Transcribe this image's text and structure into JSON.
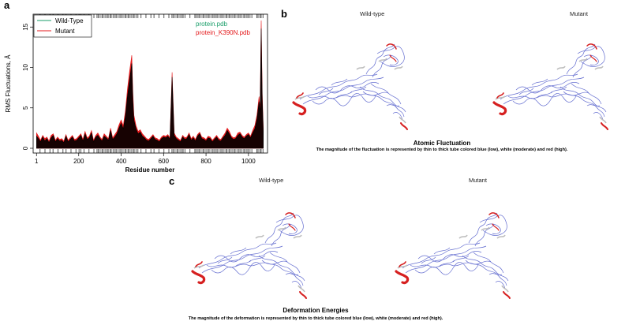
{
  "panels": {
    "a": {
      "letter": "a",
      "chart_data": {
        "type": "line",
        "xlabel": "Residue number",
        "ylabel": "RMS Fluctuations, Å",
        "xlim": [
          0,
          1075
        ],
        "ylim": [
          0,
          16
        ],
        "x_ticks": [
          1,
          200,
          400,
          600,
          800,
          1000
        ],
        "x_tick_labels": [
          "1",
          "200",
          "400",
          "600",
          "800",
          "1000"
        ],
        "y_ticks": [
          0,
          5,
          10,
          15
        ],
        "y_tick_labels": [
          "0",
          "5",
          "10",
          "15"
        ],
        "legend": {
          "placement": "top-left",
          "entries": [
            "Wild-Type",
            "Mutant"
          ]
        },
        "annotations": [
          {
            "text": "protein.pdb",
            "color": "#1a9e6a"
          },
          {
            "text": "protein_K390N.pdb",
            "color": "#e41a1c"
          }
        ],
        "series": [
          {
            "name": "Wild-Type",
            "color": "#000000",
            "x": [
              1,
              10,
              20,
              30,
              40,
              50,
              60,
              70,
              80,
              90,
              100,
              110,
              120,
              130,
              140,
              150,
              160,
              170,
              180,
              190,
              200,
              210,
              220,
              230,
              240,
              250,
              260,
              270,
              280,
              290,
              300,
              310,
              320,
              330,
              340,
              350,
              360,
              370,
              380,
              390,
              400,
              410,
              420,
              430,
              440,
              450,
              455,
              460,
              470,
              480,
              490,
              500,
              510,
              520,
              530,
              540,
              550,
              560,
              570,
              580,
              590,
              600,
              610,
              620,
              630,
              640,
              650,
              660,
              670,
              680,
              690,
              700,
              710,
              720,
              730,
              740,
              750,
              760,
              770,
              780,
              790,
              800,
              810,
              820,
              830,
              840,
              850,
              860,
              870,
              880,
              890,
              900,
              910,
              920,
              930,
              940,
              950,
              960,
              970,
              980,
              990,
              1000,
              1010,
              1020,
              1030,
              1040,
              1050,
              1055,
              1060,
              1065,
              1070
            ],
            "values": [
              1.5,
              1.2,
              0.8,
              1.4,
              0.9,
              1.2,
              0.7,
              1.3,
              1.6,
              0.8,
              1.2,
              0.9,
              1.0,
              0.7,
              1.5,
              0.8,
              1.1,
              1.4,
              0.9,
              1.0,
              1.3,
              1.6,
              0.9,
              1.8,
              1.1,
              1.3,
              1.9,
              0.8,
              1.4,
              1.6,
              1.2,
              0.9,
              1.5,
              1.3,
              1.0,
              2.2,
              1.1,
              1.4,
              1.8,
              2.5,
              3.1,
              2.4,
              4.0,
              6.5,
              8.5,
              10.5,
              6.0,
              3.5,
              2.4,
              1.8,
              2.0,
              1.5,
              1.3,
              1.0,
              0.9,
              1.2,
              1.5,
              1.1,
              1.0,
              0.8,
              1.2,
              1.4,
              1.3,
              1.5,
              1.1,
              8.8,
              1.6,
              1.2,
              1.0,
              0.8,
              1.4,
              1.1,
              1.2,
              1.7,
              1.0,
              1.3,
              0.9,
              1.5,
              1.8,
              1.2,
              1.1,
              0.9,
              1.3,
              1.2,
              0.8,
              1.1,
              1.4,
              1.0,
              0.9,
              1.3,
              1.6,
              2.2,
              1.8,
              1.3,
              1.1,
              1.2,
              1.6,
              1.8,
              1.4,
              1.2,
              1.5,
              1.7,
              1.3,
              1.9,
              2.4,
              3.6,
              5.8,
              4.2,
              14.8,
              6.1,
              2.0
            ]
          },
          {
            "name": "Mutant",
            "color": "#e41a1c",
            "x": [
              1,
              10,
              20,
              30,
              40,
              50,
              60,
              70,
              80,
              90,
              100,
              110,
              120,
              130,
              140,
              150,
              160,
              170,
              180,
              190,
              200,
              210,
              220,
              230,
              240,
              250,
              260,
              270,
              280,
              290,
              300,
              310,
              320,
              330,
              340,
              350,
              360,
              370,
              380,
              390,
              400,
              410,
              420,
              430,
              440,
              450,
              455,
              460,
              470,
              480,
              490,
              500,
              510,
              520,
              530,
              540,
              550,
              560,
              570,
              580,
              590,
              600,
              610,
              620,
              630,
              640,
              650,
              660,
              670,
              680,
              690,
              700,
              710,
              720,
              730,
              740,
              750,
              760,
              770,
              780,
              790,
              800,
              810,
              820,
              830,
              840,
              850,
              860,
              870,
              880,
              890,
              900,
              910,
              920,
              930,
              940,
              950,
              960,
              970,
              980,
              990,
              1000,
              1010,
              1020,
              1030,
              1040,
              1050,
              1055,
              1060,
              1065,
              1070
            ],
            "values": [
              1.9,
              1.5,
              1.0,
              1.6,
              1.2,
              1.4,
              0.9,
              1.6,
              1.8,
              1.0,
              1.4,
              1.1,
              1.2,
              0.9,
              1.7,
              1.0,
              1.3,
              1.6,
              1.1,
              1.2,
              1.5,
              1.8,
              1.1,
              2.1,
              1.3,
              1.5,
              2.2,
              1.0,
              1.6,
              1.9,
              1.4,
              1.1,
              1.8,
              1.5,
              1.2,
              2.5,
              1.3,
              1.7,
              2.1,
              2.9,
              3.5,
              2.8,
              4.6,
              7.4,
              9.6,
              11.5,
              7.0,
              4.1,
              2.8,
              2.1,
              2.3,
              1.8,
              1.5,
              1.2,
              1.1,
              1.4,
              1.7,
              1.3,
              1.2,
              1.0,
              1.4,
              1.6,
              1.5,
              1.7,
              1.3,
              9.4,
              1.9,
              1.4,
              1.2,
              1.0,
              1.6,
              1.3,
              1.4,
              1.9,
              1.2,
              1.5,
              1.1,
              1.7,
              2.0,
              1.4,
              1.3,
              1.1,
              1.5,
              1.4,
              1.0,
              1.3,
              1.6,
              1.2,
              1.1,
              1.5,
              1.9,
              2.5,
              2.1,
              1.5,
              1.3,
              1.4,
              1.9,
              2.0,
              1.6,
              1.4,
              1.7,
              1.9,
              1.5,
              2.2,
              2.8,
              4.1,
              6.4,
              4.8,
              15.8,
              6.8,
              2.3
            ]
          }
        ],
        "grid": false
      }
    },
    "b": {
      "letter": "b",
      "left_label": "Wild-type",
      "right_label": "Mutant",
      "caption_title": "Atomic Fluctuation",
      "caption_text": "The magnitude of the fluctuation is represented by thin to thick tube colored blue (low), white (moderate) and red (high)."
    },
    "c": {
      "letter": "c",
      "left_label": "Wild-type",
      "right_label": "Mutant",
      "caption_title": "Deformation Energies",
      "caption_text": "The magnitude of the deformation is represented by thin to thick tube colored blue (low), white (moderate) and red (high)."
    }
  }
}
